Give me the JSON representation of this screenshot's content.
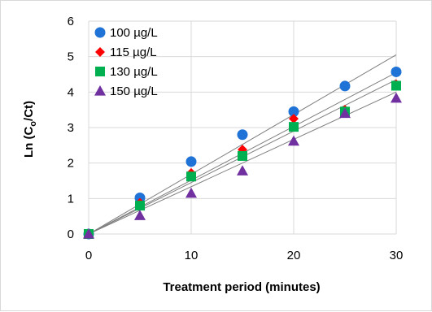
{
  "chart_data": {
    "type": "scatter",
    "xlabel": "Treatment period (minutes)",
    "ylabel_main": "Ln (C",
    "ylabel_sub": "o",
    "ylabel_end": "/Ct)",
    "xlim": [
      0,
      30
    ],
    "ylim": [
      0,
      6
    ],
    "x_ticks": [
      "0",
      "10",
      "20",
      "30"
    ],
    "y_ticks": [
      "0",
      "1",
      "2",
      "3",
      "4",
      "5",
      "6"
    ],
    "grid": true,
    "legend_position": "top-left",
    "trendlines": true,
    "series": [
      {
        "name": "100 µg/L",
        "marker": "circle",
        "color": "#1f72d6",
        "x": [
          0,
          5,
          10,
          15,
          20,
          25,
          30
        ],
        "y": [
          0,
          1.02,
          2.04,
          2.8,
          3.45,
          4.17,
          4.57
        ],
        "trend_y_at_30": 5.05
      },
      {
        "name": "115 µg/L",
        "marker": "diamond",
        "color": "#ff0000",
        "x": [
          0,
          5,
          10,
          15,
          20,
          25,
          30
        ],
        "y": [
          0,
          0.88,
          1.72,
          2.38,
          3.25,
          3.5,
          4.22
        ],
        "trend_y_at_30": 4.55
      },
      {
        "name": "130 µg/L",
        "marker": "square",
        "color": "#00b050",
        "x": [
          0,
          5,
          10,
          15,
          20,
          25,
          30
        ],
        "y": [
          0,
          0.8,
          1.62,
          2.2,
          3.02,
          3.45,
          4.18
        ],
        "trend_y_at_30": 4.35
      },
      {
        "name": "150 µg/L",
        "marker": "triangle",
        "color": "#7030a0",
        "x": [
          0,
          5,
          10,
          15,
          20,
          25,
          30
        ],
        "y": [
          0,
          0.52,
          1.15,
          1.78,
          2.62,
          3.4,
          3.83
        ],
        "trend_y_at_30": 4.0
      }
    ]
  }
}
